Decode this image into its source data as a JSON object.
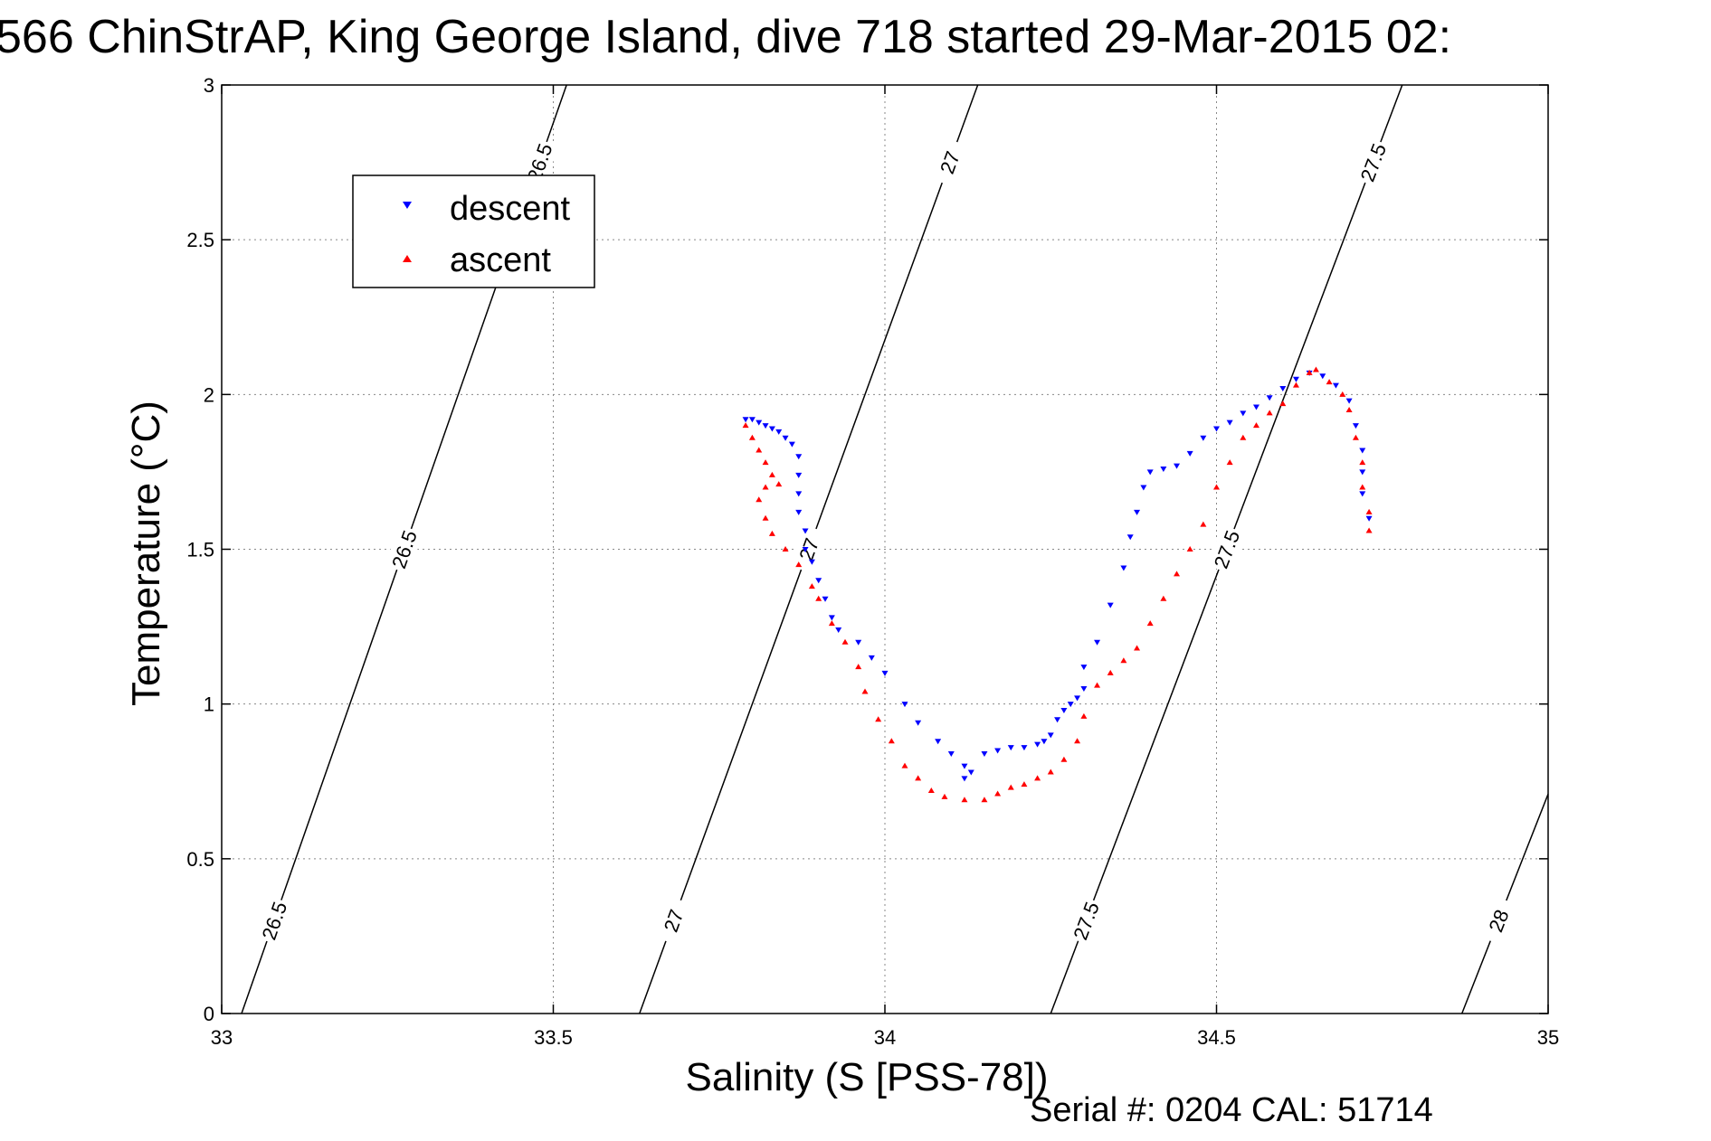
{
  "chart_data": {
    "type": "scatter",
    "title": "566 ChinStrAP, King George Island, dive 718 started 29-Mar-2015 02:",
    "xlabel": "Salinity (S [PSS-78])",
    "ylabel": "Temperature (°C)",
    "xlim": [
      33,
      35
    ],
    "ylim": [
      0,
      3
    ],
    "xticks": [
      33,
      33.5,
      34,
      34.5,
      35
    ],
    "xtick_labels": [
      "33",
      "33.5",
      "34",
      "34.5",
      "35"
    ],
    "yticks": [
      0,
      0.5,
      1,
      1.5,
      2,
      2.5,
      3
    ],
    "ytick_labels": [
      "0",
      "0.5",
      "1",
      "1.5",
      "2",
      "2.5",
      "3"
    ],
    "grid": true,
    "legend": {
      "position": "top-left"
    },
    "series": [
      {
        "name": "descent",
        "color": "#0000ff",
        "marker": "triangle-down",
        "points": [
          [
            33.79,
            1.92
          ],
          [
            33.8,
            1.92
          ],
          [
            33.81,
            1.91
          ],
          [
            33.82,
            1.9
          ],
          [
            33.83,
            1.89
          ],
          [
            33.84,
            1.88
          ],
          [
            33.85,
            1.86
          ],
          [
            33.86,
            1.84
          ],
          [
            33.87,
            1.8
          ],
          [
            33.87,
            1.74
          ],
          [
            33.87,
            1.68
          ],
          [
            33.87,
            1.62
          ],
          [
            33.88,
            1.56
          ],
          [
            33.88,
            1.5
          ],
          [
            33.89,
            1.46
          ],
          [
            33.9,
            1.4
          ],
          [
            33.91,
            1.34
          ],
          [
            33.92,
            1.28
          ],
          [
            33.93,
            1.24
          ],
          [
            33.96,
            1.2
          ],
          [
            33.98,
            1.15
          ],
          [
            34.0,
            1.1
          ],
          [
            34.03,
            1.0
          ],
          [
            34.05,
            0.94
          ],
          [
            34.08,
            0.88
          ],
          [
            34.1,
            0.84
          ],
          [
            34.12,
            0.8
          ],
          [
            34.12,
            0.76
          ],
          [
            34.13,
            0.78
          ],
          [
            34.15,
            0.84
          ],
          [
            34.17,
            0.85
          ],
          [
            34.19,
            0.86
          ],
          [
            34.21,
            0.86
          ],
          [
            34.23,
            0.87
          ],
          [
            34.24,
            0.88
          ],
          [
            34.25,
            0.9
          ],
          [
            34.26,
            0.95
          ],
          [
            34.27,
            0.98
          ],
          [
            34.28,
            1.0
          ],
          [
            34.29,
            1.02
          ],
          [
            34.3,
            1.05
          ],
          [
            34.3,
            1.12
          ],
          [
            34.32,
            1.2
          ],
          [
            34.34,
            1.32
          ],
          [
            34.36,
            1.44
          ],
          [
            34.37,
            1.54
          ],
          [
            34.38,
            1.62
          ],
          [
            34.39,
            1.7
          ],
          [
            34.4,
            1.75
          ],
          [
            34.42,
            1.76
          ],
          [
            34.44,
            1.77
          ],
          [
            34.46,
            1.81
          ],
          [
            34.48,
            1.86
          ],
          [
            34.5,
            1.89
          ],
          [
            34.52,
            1.91
          ],
          [
            34.54,
            1.94
          ],
          [
            34.56,
            1.96
          ],
          [
            34.58,
            1.99
          ],
          [
            34.6,
            2.02
          ],
          [
            34.62,
            2.05
          ],
          [
            34.64,
            2.07
          ],
          [
            34.66,
            2.06
          ],
          [
            34.68,
            2.03
          ],
          [
            34.7,
            1.98
          ],
          [
            34.71,
            1.9
          ],
          [
            34.72,
            1.82
          ],
          [
            34.72,
            1.75
          ],
          [
            34.72,
            1.68
          ],
          [
            34.73,
            1.6
          ]
        ]
      },
      {
        "name": "ascent",
        "color": "#ff0000",
        "marker": "triangle-up",
        "points": [
          [
            33.79,
            1.9
          ],
          [
            33.8,
            1.86
          ],
          [
            33.81,
            1.82
          ],
          [
            33.82,
            1.78
          ],
          [
            33.83,
            1.74
          ],
          [
            33.84,
            1.71
          ],
          [
            33.82,
            1.7
          ],
          [
            33.81,
            1.66
          ],
          [
            33.82,
            1.6
          ],
          [
            33.83,
            1.55
          ],
          [
            33.85,
            1.5
          ],
          [
            33.87,
            1.45
          ],
          [
            33.89,
            1.38
          ],
          [
            33.9,
            1.34
          ],
          [
            33.92,
            1.26
          ],
          [
            33.94,
            1.2
          ],
          [
            33.96,
            1.12
          ],
          [
            33.97,
            1.04
          ],
          [
            33.99,
            0.95
          ],
          [
            34.01,
            0.88
          ],
          [
            34.03,
            0.8
          ],
          [
            34.05,
            0.76
          ],
          [
            34.07,
            0.72
          ],
          [
            34.09,
            0.7
          ],
          [
            34.12,
            0.69
          ],
          [
            34.15,
            0.69
          ],
          [
            34.17,
            0.71
          ],
          [
            34.19,
            0.73
          ],
          [
            34.21,
            0.74
          ],
          [
            34.23,
            0.76
          ],
          [
            34.25,
            0.78
          ],
          [
            34.27,
            0.82
          ],
          [
            34.29,
            0.88
          ],
          [
            34.3,
            0.96
          ],
          [
            34.32,
            1.06
          ],
          [
            34.34,
            1.1
          ],
          [
            34.36,
            1.14
          ],
          [
            34.38,
            1.18
          ],
          [
            34.4,
            1.26
          ],
          [
            34.42,
            1.34
          ],
          [
            34.44,
            1.42
          ],
          [
            34.46,
            1.5
          ],
          [
            34.48,
            1.58
          ],
          [
            34.5,
            1.7
          ],
          [
            34.52,
            1.78
          ],
          [
            34.54,
            1.86
          ],
          [
            34.56,
            1.9
          ],
          [
            34.58,
            1.94
          ],
          [
            34.6,
            1.97
          ],
          [
            34.62,
            2.03
          ],
          [
            34.64,
            2.07
          ],
          [
            34.65,
            2.08
          ],
          [
            34.67,
            2.04
          ],
          [
            34.69,
            2.0
          ],
          [
            34.7,
            1.95
          ],
          [
            34.71,
            1.86
          ],
          [
            34.72,
            1.78
          ],
          [
            34.72,
            1.7
          ],
          [
            34.73,
            1.62
          ],
          [
            34.73,
            1.56
          ]
        ]
      }
    ],
    "isopycnals": [
      {
        "label": "26.5",
        "s0": 33.03,
        "t0": 0,
        "s3": 33.52,
        "t3": 3
      },
      {
        "label": "27",
        "s0": 33.63,
        "t0": 0,
        "s3": 34.14,
        "t3": 3
      },
      {
        "label": "27.5",
        "s0": 34.25,
        "t0": 0,
        "s3": 34.78,
        "t3": 3
      },
      {
        "label": "28",
        "s0": 34.87,
        "t0": 0,
        "s3": 35.42,
        "t3": 3
      }
    ],
    "footer": "Serial #: 0204  CAL: 51714"
  }
}
